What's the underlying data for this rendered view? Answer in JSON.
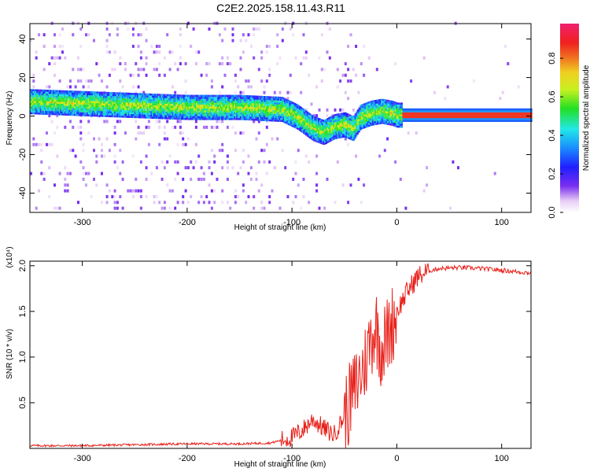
{
  "title": "C2E2.2025.158.11.43.R11",
  "chart_data": [
    {
      "type": "heatmap",
      "xlabel": "Height of straight line (km)",
      "ylabel": "Frequency (Hz)",
      "xlim": [
        -350,
        128
      ],
      "ylim": [
        -50,
        48
      ],
      "xticks": [
        -300,
        -200,
        -100,
        0,
        100
      ],
      "yticks": [
        -40,
        -20,
        0,
        20,
        40
      ],
      "colorbar": {
        "label": "Normalized spectral amplitude",
        "range": [
          0.0,
          0.98
        ],
        "ticks": [
          "0.0",
          "0.2",
          "0.4",
          "0.6",
          "0.8"
        ],
        "colormap": "white-violet-blue-cyan-green-yellow-red-magenta"
      },
      "ridge": {
        "x": [
          -350,
          -300,
          -250,
          -200,
          -150,
          -110,
          -95,
          -80,
          -70,
          -60,
          -50,
          -42,
          -35,
          -25,
          -15,
          -5,
          0,
          50,
          128
        ],
        "y": [
          7,
          6,
          5,
          4,
          4,
          3,
          -1,
          -7,
          -9,
          -6,
          -5,
          -7,
          -1,
          1,
          2,
          1,
          0,
          0,
          0
        ]
      },
      "grid": false
    },
    {
      "type": "line",
      "xlabel": "Height of straight line (km)",
      "ylabel": "SNR (10 * v/v)",
      "y_multiplier": "(x10⁴)",
      "xlim": [
        -350,
        128
      ],
      "ylim": [
        0,
        2.05
      ],
      "xticks": [
        -300,
        -200,
        -100,
        0,
        100
      ],
      "yticks": [
        0.5,
        1.0,
        1.5,
        2.0
      ],
      "series": [
        {
          "color": "#e8201a",
          "x": [
            -350,
            -300,
            -250,
            -200,
            -150,
            -120,
            -100,
            -90,
            -80,
            -70,
            -60,
            -50,
            -40,
            -30,
            -25,
            -20,
            -15,
            -10,
            -5,
            0,
            10,
            20,
            30,
            40,
            60,
            80,
            100,
            128
          ],
          "y": [
            0.03,
            0.03,
            0.04,
            0.05,
            0.05,
            0.06,
            0.12,
            0.2,
            0.32,
            0.22,
            0.15,
            0.35,
            0.65,
            0.95,
            1.2,
            1.35,
            1.1,
            1.2,
            1.35,
            1.5,
            1.72,
            1.88,
            1.94,
            1.97,
            1.98,
            1.97,
            1.95,
            1.92
          ]
        }
      ],
      "grid": false
    }
  ]
}
